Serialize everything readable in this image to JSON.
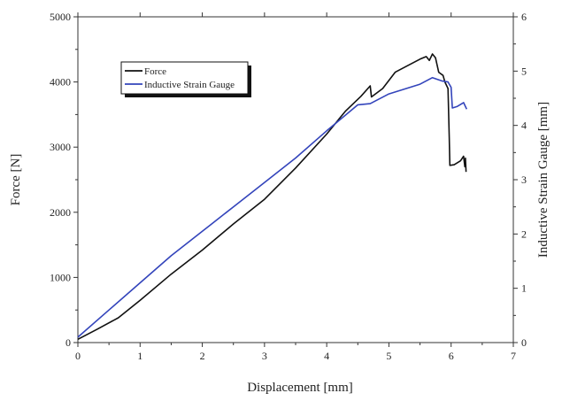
{
  "chart_data": {
    "type": "line",
    "xlabel": "Displacement [mm]",
    "ylabel": "Force [N]",
    "y2label": "Inductive Strain Gauge [mm]",
    "xlim": [
      0,
      7
    ],
    "ylim": [
      0,
      5000
    ],
    "y2lim": [
      0,
      6
    ],
    "xticks": [
      0,
      1,
      2,
      3,
      4,
      5,
      6,
      7
    ],
    "yticks": [
      0,
      1000,
      2000,
      3000,
      4000,
      5000
    ],
    "y2ticks": [
      0,
      1,
      2,
      3,
      4,
      5,
      6
    ],
    "grid": false,
    "legend": "top-left",
    "series": [
      {
        "name": "Force",
        "axis": "left",
        "color": "#111111",
        "points": [
          [
            0,
            50
          ],
          [
            0.3,
            200
          ],
          [
            0.65,
            380
          ],
          [
            1.0,
            650
          ],
          [
            1.5,
            1050
          ],
          [
            2.0,
            1420
          ],
          [
            2.5,
            1820
          ],
          [
            3.0,
            2200
          ],
          [
            3.5,
            2680
          ],
          [
            4.0,
            3200
          ],
          [
            4.3,
            3550
          ],
          [
            4.55,
            3780
          ],
          [
            4.7,
            3940
          ],
          [
            4.72,
            3770
          ],
          [
            4.9,
            3900
          ],
          [
            5.1,
            4150
          ],
          [
            5.3,
            4250
          ],
          [
            5.5,
            4350
          ],
          [
            5.6,
            4390
          ],
          [
            5.65,
            4330
          ],
          [
            5.7,
            4430
          ],
          [
            5.75,
            4370
          ],
          [
            5.8,
            4150
          ],
          [
            5.87,
            4100
          ],
          [
            5.9,
            4000
          ],
          [
            5.95,
            3900
          ],
          [
            5.97,
            3150
          ],
          [
            5.98,
            2720
          ],
          [
            6.05,
            2730
          ],
          [
            6.15,
            2790
          ],
          [
            6.2,
            2860
          ],
          [
            6.22,
            2700
          ],
          [
            6.23,
            2830
          ],
          [
            6.24,
            2620
          ]
        ]
      },
      {
        "name": "Inductive Strain Gauge",
        "axis": "right",
        "color": "#3344bb",
        "points": [
          [
            0,
            0.1
          ],
          [
            0.5,
            0.6
          ],
          [
            1.0,
            1.1
          ],
          [
            1.5,
            1.6
          ],
          [
            2.0,
            2.05
          ],
          [
            2.5,
            2.5
          ],
          [
            3.0,
            2.95
          ],
          [
            3.5,
            3.4
          ],
          [
            4.0,
            3.9
          ],
          [
            4.5,
            4.38
          ],
          [
            4.7,
            4.4
          ],
          [
            5.0,
            4.58
          ],
          [
            5.5,
            4.76
          ],
          [
            5.7,
            4.88
          ],
          [
            5.85,
            4.82
          ],
          [
            5.95,
            4.8
          ],
          [
            6.0,
            4.7
          ],
          [
            6.02,
            4.32
          ],
          [
            6.1,
            4.35
          ],
          [
            6.2,
            4.42
          ],
          [
            6.25,
            4.3
          ]
        ]
      }
    ]
  }
}
